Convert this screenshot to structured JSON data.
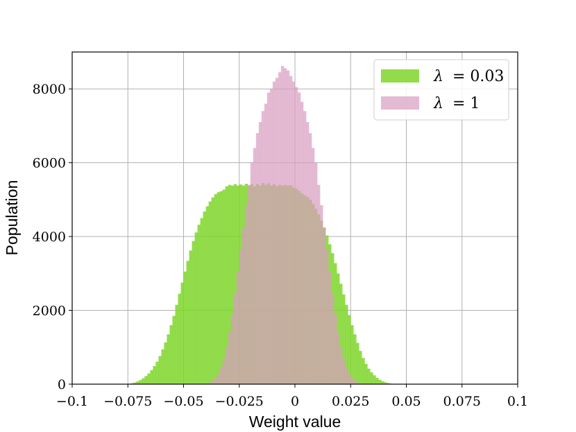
{
  "chart_data": {
    "type": "bar",
    "subtype": "overlapping-histogram",
    "title": "",
    "xlabel": "Weight value",
    "ylabel": "Population",
    "xlim": [
      -0.1,
      0.1
    ],
    "ylim": [
      0,
      9000
    ],
    "x_ticks": [
      -0.1,
      -0.075,
      -0.05,
      -0.025,
      0,
      0.025,
      0.05,
      0.075,
      0.1
    ],
    "x_tick_labels": [
      "−0.1",
      "−0.075",
      "−0.05",
      "−0.025",
      "0",
      "0.025",
      "0.05",
      "0.075",
      "0.1"
    ],
    "y_ticks": [
      0,
      2000,
      4000,
      6000,
      8000
    ],
    "y_tick_labels": [
      "0",
      "2000",
      "4000",
      "6000",
      "8000"
    ],
    "grid": true,
    "legend_position": "top-right",
    "bin_width": 0.00125,
    "series": [
      {
        "name": "λ = 0.03",
        "legend_symbol": "λ",
        "legend_value": "= 0.03",
        "color": "#7fd62b",
        "alpha": 0.85,
        "bin_start": -0.075,
        "counts": [
          10,
          25,
          45,
          75,
          110,
          160,
          220,
          290,
          380,
          490,
          610,
          760,
          940,
          1130,
          1350,
          1600,
          1850,
          2150,
          2450,
          2750,
          3050,
          3340,
          3620,
          3880,
          4110,
          4320,
          4500,
          4680,
          4820,
          4950,
          5060,
          5150,
          5200,
          5230,
          5270,
          5360,
          5400,
          5380,
          5420,
          5380,
          5410,
          5380,
          5430,
          5380,
          5420,
          5360,
          5420,
          5380,
          5450,
          5400,
          5440,
          5380,
          5420,
          5360,
          5400,
          5380,
          5400,
          5380,
          5390,
          5330,
          5300,
          5240,
          5170,
          5120,
          5070,
          5000,
          4880,
          4750,
          4600,
          4430,
          4240,
          4030,
          3790,
          3550,
          3280,
          3000,
          2720,
          2430,
          2150,
          1870,
          1600,
          1350,
          1120,
          900,
          710,
          550,
          420,
          320,
          240,
          170,
          120,
          80,
          50,
          30,
          15,
          8
        ]
      },
      {
        "name": "λ = 1",
        "legend_symbol": "λ",
        "legend_value": "= 1",
        "color": "#d89cc0",
        "alpha": 0.7,
        "bin_start": -0.04,
        "counts": [
          20,
          50,
          100,
          180,
          300,
          470,
          700,
          1000,
          1400,
          1900,
          2450,
          3050,
          3650,
          4250,
          4850,
          5400,
          6000,
          6400,
          6800,
          7100,
          7400,
          7600,
          7900,
          8000,
          8200,
          8300,
          8450,
          8620,
          8560,
          8500,
          8350,
          8200,
          8050,
          7900,
          7650,
          7400,
          7100,
          6800,
          6400,
          6000,
          5400,
          4850,
          4250,
          3650,
          3050,
          2450,
          1900,
          1400,
          1000,
          700,
          470,
          300,
          180,
          100,
          50,
          20
        ]
      }
    ]
  }
}
